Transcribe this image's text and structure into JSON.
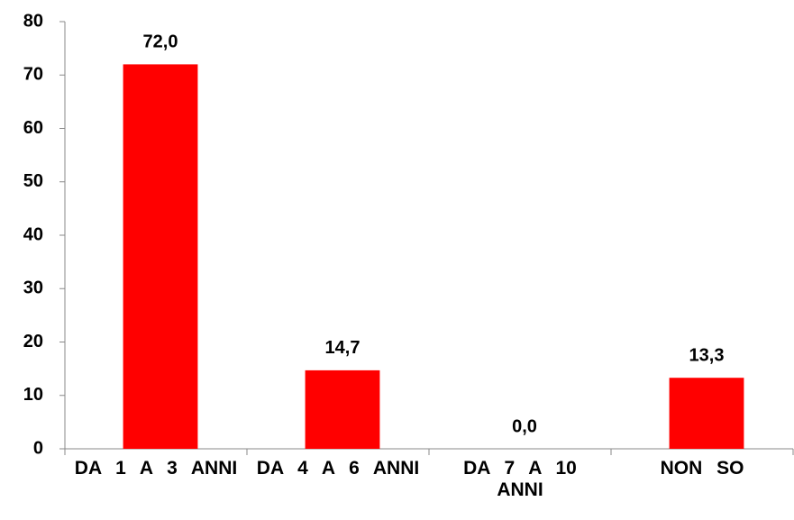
{
  "chart_data": {
    "type": "bar",
    "categories": [
      "DA 1 A 3 ANNI",
      "DA 4 A 6 ANNI",
      "DA 7 A 10 ANNI",
      "NON SO"
    ],
    "values": [
      72,
      14.7,
      0,
      13.3
    ],
    "value_labels": [
      "72,0",
      "14,7",
      "0,0",
      "13,3"
    ],
    "color": "#ff0000",
    "ylim": [
      0,
      80
    ],
    "yticks": [
      0,
      10,
      20,
      30,
      40,
      50,
      60,
      70,
      80
    ],
    "grid": false
  }
}
